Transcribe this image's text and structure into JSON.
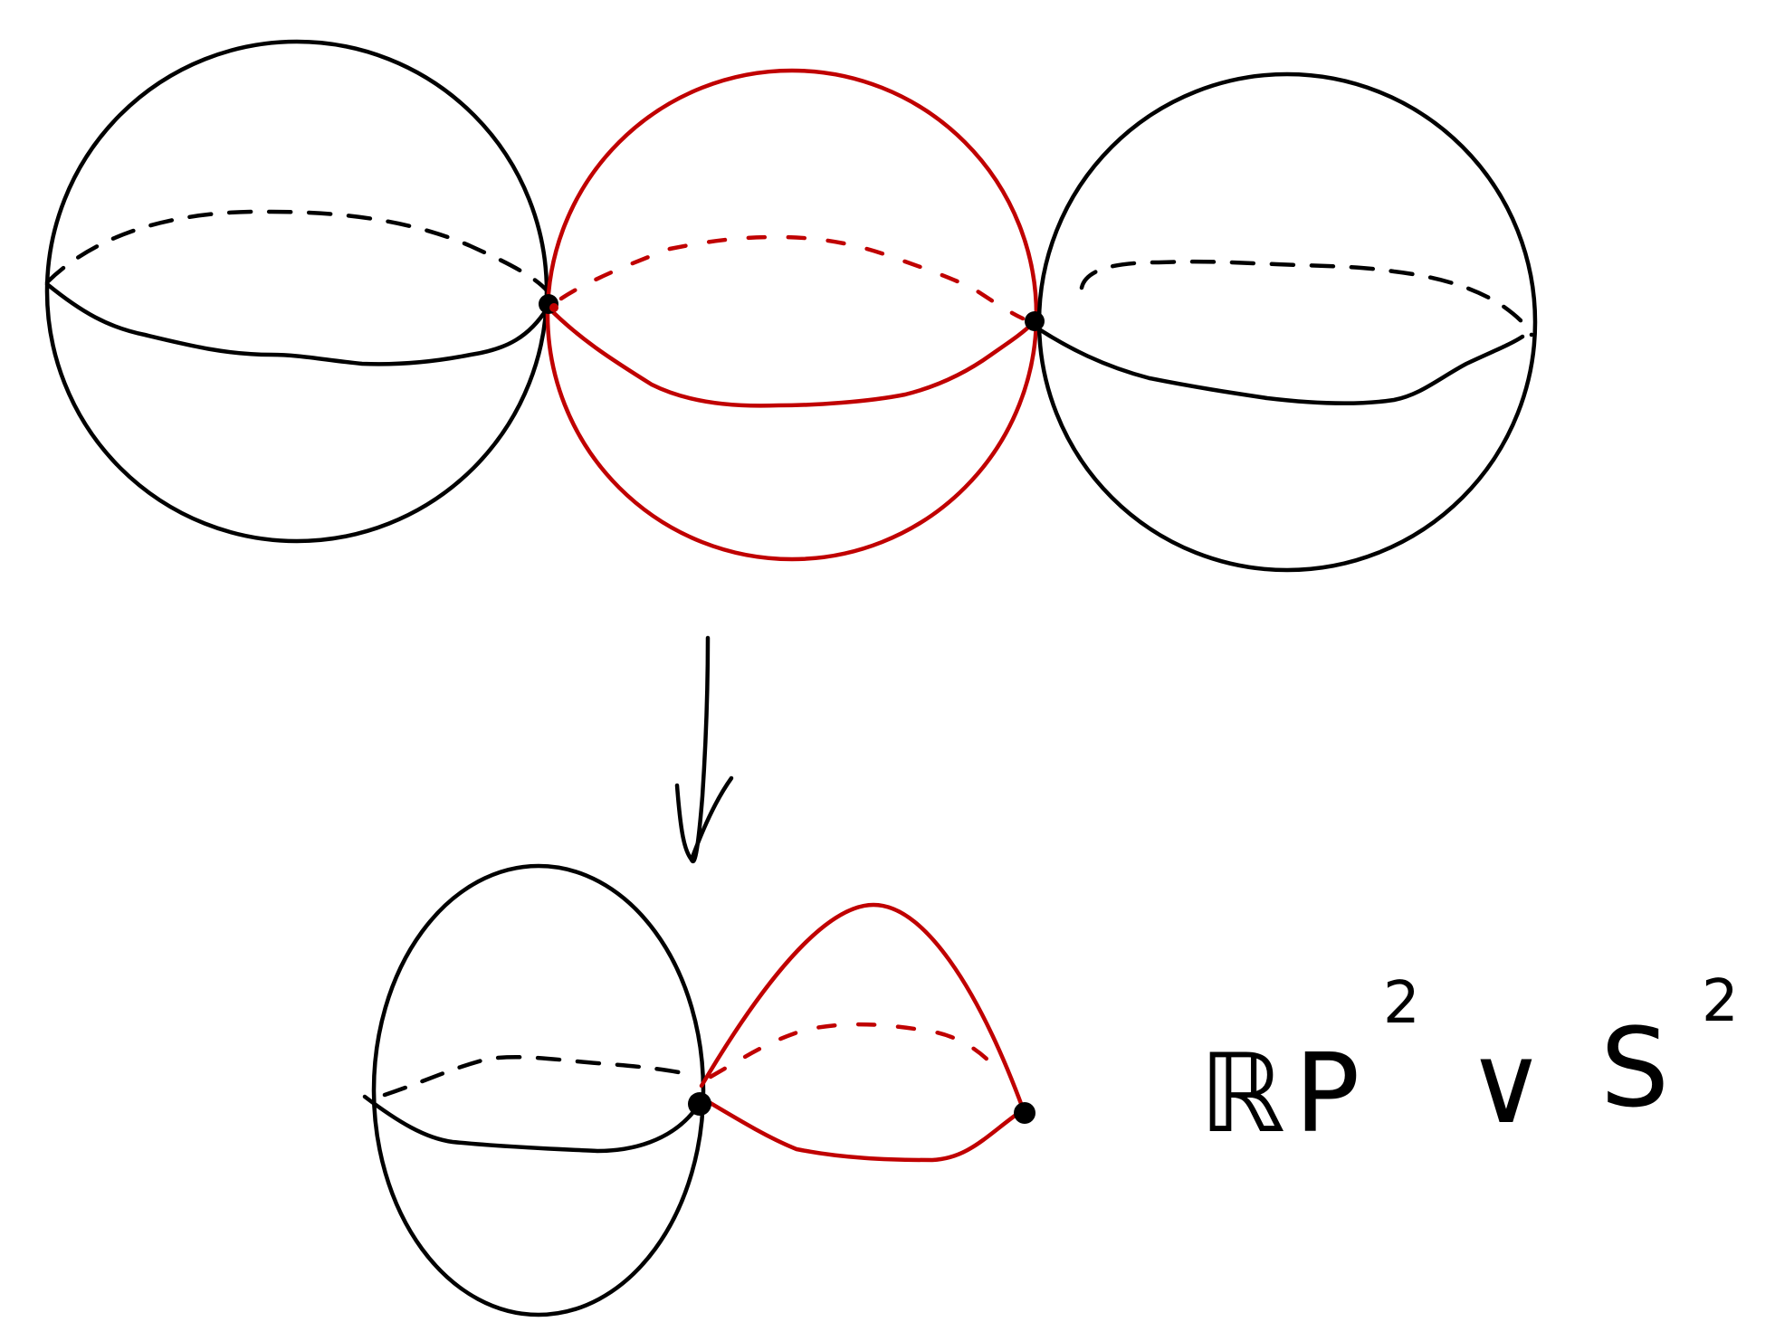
{
  "colors": {
    "ink": "#000000",
    "accent": "#c00000",
    "background": "#ffffff"
  },
  "formula": {
    "base_1": "ℝP",
    "exp_1": "2",
    "wedge": "∨",
    "base_2": "S",
    "exp_2": "2"
  },
  "icons": {
    "arrow": "down-arrow-icon"
  }
}
